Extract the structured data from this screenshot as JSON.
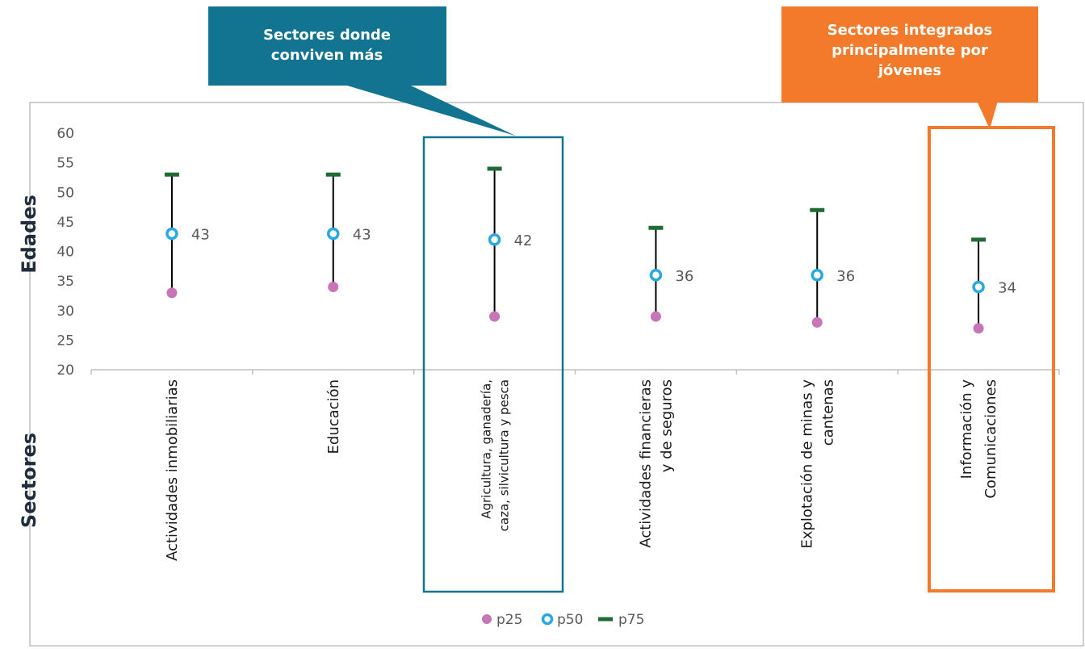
{
  "chart_data": {
    "type": "scatter",
    "categories": [
      "Actividades inmobiliarias",
      "Educación",
      "Agricultura, ganadería, caza, silvicultura y pesca",
      "Actividades financieras y de seguros",
      "Explotación de minas y cantenas",
      "Información y Comunicaciones"
    ],
    "series": [
      {
        "name": "p25",
        "values": [
          33,
          34,
          29,
          29,
          28,
          27
        ],
        "color": "#c774b8"
      },
      {
        "name": "p50",
        "values": [
          43,
          43,
          42,
          36,
          36,
          34
        ],
        "color": "#2aa8e0"
      },
      {
        "name": "p75",
        "values": [
          53,
          53,
          54,
          44,
          47,
          42
        ],
        "color": "#1e6b34"
      }
    ],
    "data_labels": [
      "43",
      "43",
      "42",
      "36",
      "36",
      "34"
    ],
    "xlabel": "Sectores",
    "ylabel": "Edades",
    "ylim": [
      20,
      60
    ],
    "yticks": [
      20,
      25,
      30,
      35,
      40,
      45,
      50,
      55,
      60
    ],
    "grid": false,
    "legend_position": "bottom",
    "whisker_color": "#000000"
  },
  "callouts": [
    {
      "text": [
        "Sectores donde",
        "conviven más"
      ],
      "color": "#137491",
      "highlights_category": 2
    },
    {
      "text": [
        "Sectores integrados",
        "principalmente por",
        "jóvenes"
      ],
      "color": "#f47a2b",
      "highlights_category": 5
    }
  ]
}
